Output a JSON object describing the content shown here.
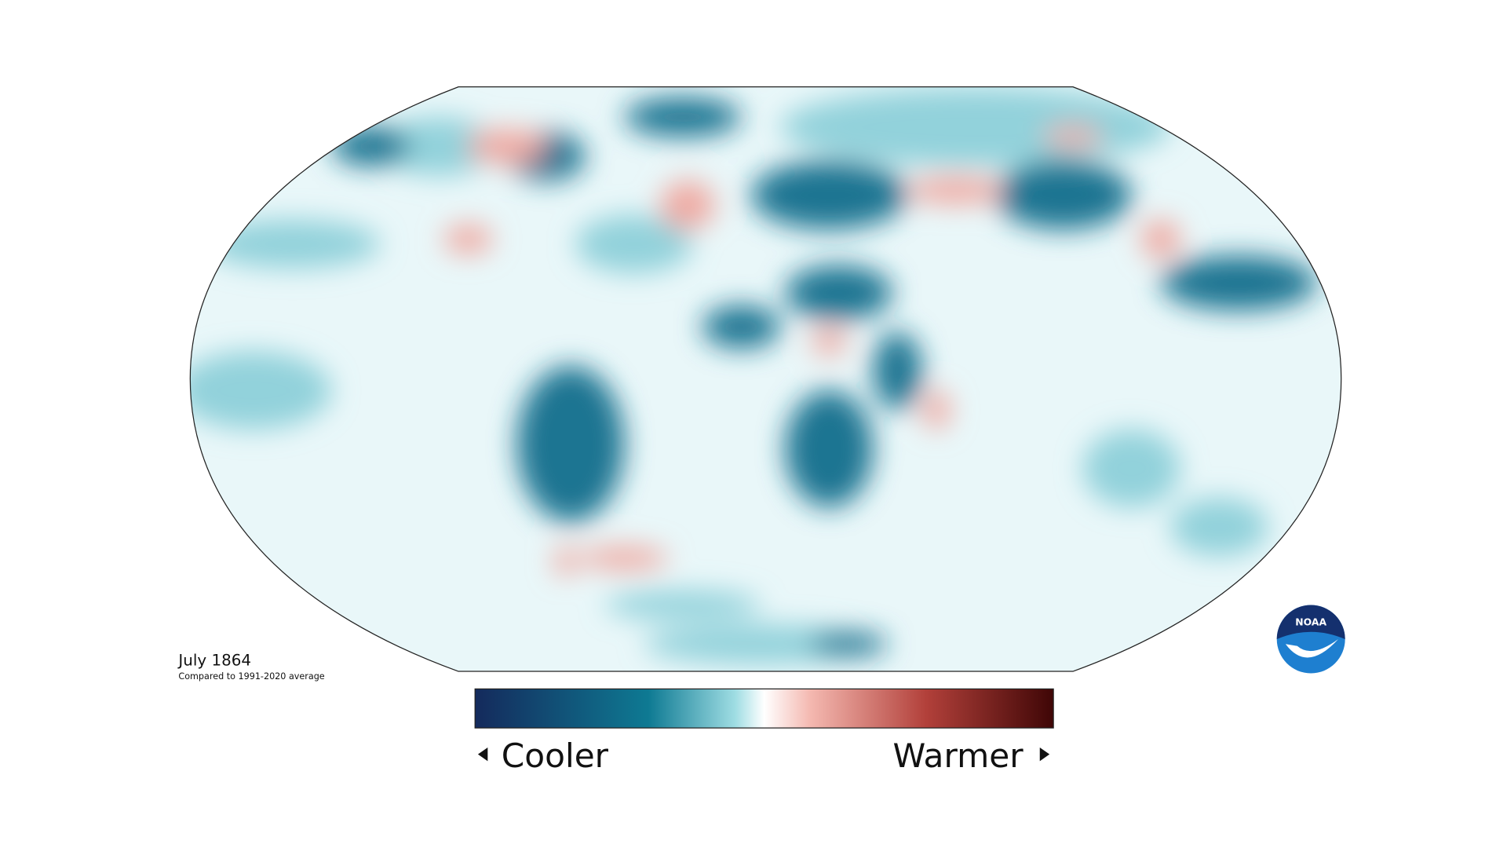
{
  "caption": {
    "title": "July 1864",
    "subtitle": "Compared to 1991-2020 average"
  },
  "legend": {
    "low_label": "Cooler",
    "high_label": "Warmer"
  },
  "logo": {
    "text": "NOAA"
  }
}
